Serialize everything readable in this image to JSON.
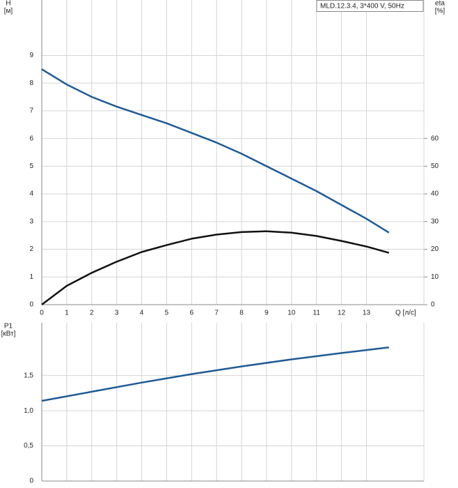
{
  "chart_data": [
    {
      "type": "line",
      "legend_label": "MLD.12.3.4, 3*400 V, 50Hz",
      "ylabel": "H",
      "yunit": "[м]",
      "y2label": "eta",
      "y2unit": "[%]",
      "xlabel": "Q [л/с]",
      "x": [
        0,
        1,
        2,
        3,
        4,
        5,
        6,
        7,
        8,
        9,
        10,
        11,
        12,
        13,
        13.9
      ],
      "series": [
        {
          "color": "#1f5a96",
          "axis": "y",
          "values": [
            8.5,
            7.95,
            7.5,
            7.15,
            6.85,
            6.55,
            6.2,
            5.85,
            5.45,
            5.0,
            4.55,
            4.1,
            3.6,
            3.1,
            2.6
          ]
        },
        {
          "color": "#111111",
          "axis": "y2",
          "values": [
            0,
            6.8,
            11.5,
            15.5,
            19,
            21.5,
            23.8,
            25.3,
            26.2,
            26.5,
            26,
            24.8,
            23,
            21,
            18.7
          ]
        }
      ],
      "xlim": [
        0,
        15.3
      ],
      "xticks": [
        0,
        1,
        2,
        3,
        4,
        5,
        6,
        7,
        8,
        9,
        10,
        11,
        12,
        13
      ],
      "ylim": [
        0,
        11
      ],
      "yticks": [
        0,
        1,
        2,
        3,
        4,
        5,
        6,
        7,
        8,
        9
      ],
      "y2lim": [
        0,
        110
      ],
      "y2ticks": [
        0,
        10,
        20,
        30,
        40,
        50,
        60
      ],
      "grid": true
    },
    {
      "type": "line",
      "ylabel": "P1",
      "yunit": "[кВт]",
      "x": [
        0,
        2,
        4,
        6,
        8,
        10,
        12,
        13.9
      ],
      "series": [
        {
          "color": "#1f5a96",
          "axis": "y",
          "values": [
            1.14,
            1.27,
            1.4,
            1.52,
            1.63,
            1.73,
            1.82,
            1.9
          ]
        }
      ],
      "xlim": [
        0,
        15.3
      ],
      "xticks": [
        0,
        1,
        2,
        3,
        4,
        5,
        6,
        7,
        8,
        9,
        10,
        11,
        12,
        13
      ],
      "ylim": [
        0,
        2.25
      ],
      "yticks": [
        0,
        {
          "value": 0.5,
          "label": "0,5"
        },
        {
          "value": 1.0,
          "label": "1,0"
        },
        {
          "value": 1.5,
          "label": "1,5"
        }
      ],
      "grid": true
    }
  ]
}
